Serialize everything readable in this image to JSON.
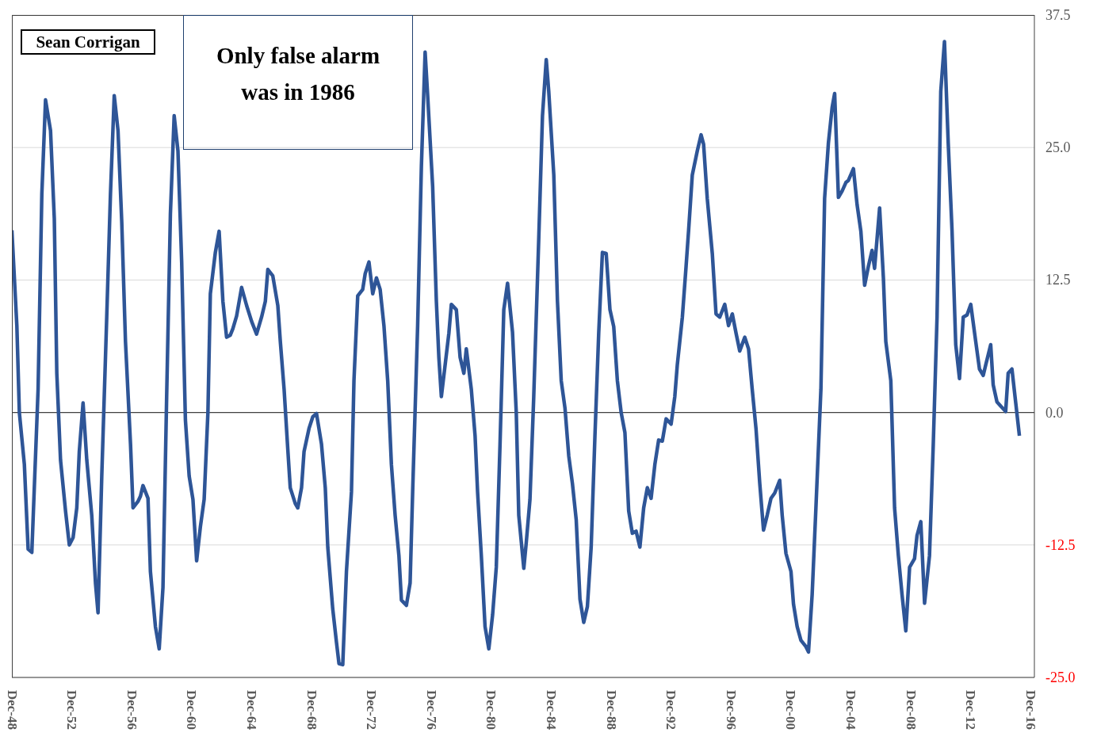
{
  "chart_data": {
    "type": "line",
    "annotations": [
      "Sean Corrigan",
      "Only false alarm was in 1986"
    ],
    "x": [
      "1948-12",
      "1949-04",
      "1949-06",
      "1949-10",
      "1950-01",
      "1950-04",
      "1950-09",
      "1950-12",
      "1951-03",
      "1951-07",
      "1951-10",
      "1951-12",
      "1952-03",
      "1952-07",
      "1952-10",
      "1953-01",
      "1953-04",
      "1953-06",
      "1953-09",
      "1953-12",
      "1954-04",
      "1954-07",
      "1954-09",
      "1954-12",
      "1955-04",
      "1955-07",
      "1955-10",
      "1956-01",
      "1956-04",
      "1956-07",
      "1956-11",
      "1957-01",
      "1957-05",
      "1957-07",
      "1957-09",
      "1958-01",
      "1958-03",
      "1958-07",
      "1958-10",
      "1959-01",
      "1959-04",
      "1959-07",
      "1959-10",
      "1960-01",
      "1960-04",
      "1960-07",
      "1960-10",
      "1961-01",
      "1961-04",
      "1961-07",
      "1961-10",
      "1962-01",
      "1962-03",
      "1962-07",
      "1962-10",
      "1963-01",
      "1963-04",
      "1963-07",
      "1963-09",
      "1963-12",
      "1964-04",
      "1964-08",
      "1964-12",
      "1965-04",
      "1965-08",
      "1965-11",
      "1966-01",
      "1966-05",
      "1966-09",
      "1966-11",
      "1967-02",
      "1967-05",
      "1967-07",
      "1967-11",
      "1968-01",
      "1968-04",
      "1968-06",
      "1968-10",
      "1969-01",
      "1969-04",
      "1969-08",
      "1969-11",
      "1970-01",
      "1970-05",
      "1970-08",
      "1970-10",
      "1971-01",
      "1971-04",
      "1971-08",
      "1971-10",
      "1972-01",
      "1972-05",
      "1972-07",
      "1972-10",
      "1973-01",
      "1973-04",
      "1973-07",
      "1973-10",
      "1974-01",
      "1974-04",
      "1974-07",
      "1974-10",
      "1974-12",
      "1975-04",
      "1975-07",
      "1975-09",
      "1976-01",
      "1976-04",
      "1976-07",
      "1976-09",
      "1977-01",
      "1977-04",
      "1977-06",
      "1977-08",
      "1977-11",
      "1978-02",
      "1978-04",
      "1978-08",
      "1978-11",
      "1979-02",
      "1979-04",
      "1979-08",
      "1979-11",
      "1980-01",
      "1980-04",
      "1980-07",
      "1980-10",
      "1981-01",
      "1981-04",
      "1981-07",
      "1981-10",
      "1982-01",
      "1982-05",
      "1982-08",
      "1982-10",
      "1983-02",
      "1983-04",
      "1983-07",
      "1983-10",
      "1984-02",
      "1984-05",
      "1984-08",
      "1984-10",
      "1985-02",
      "1985-05",
      "1985-08",
      "1985-11",
      "1986-02",
      "1986-05",
      "1986-08",
      "1986-11",
      "1987-02",
      "1987-05",
      "1987-08",
      "1987-11",
      "1988-02",
      "1988-05",
      "1988-08",
      "1988-11",
      "1989-02",
      "1989-05",
      "1989-08",
      "1989-11",
      "1990-02",
      "1990-05",
      "1990-08",
      "1990-11",
      "1991-02",
      "1991-05",
      "1991-08",
      "1991-11",
      "1992-02",
      "1992-05",
      "1992-08",
      "1992-12",
      "1993-03",
      "1993-05",
      "1993-09",
      "1993-12",
      "1994-02",
      "1994-05",
      "1994-09",
      "1994-12",
      "1995-02",
      "1995-05",
      "1995-09",
      "1995-12",
      "1996-03",
      "1996-07",
      "1996-10",
      "1997-01",
      "1997-04",
      "1997-07",
      "1997-11",
      "1998-02",
      "1998-05",
      "1998-08",
      "1998-11",
      "1999-02",
      "1999-05",
      "1999-08",
      "1999-11",
      "2000-03",
      "2000-05",
      "2000-08",
      "2000-12",
      "2001-02",
      "2001-05",
      "2001-08",
      "2001-12",
      "2002-02",
      "2002-05",
      "2002-08",
      "2002-12",
      "2003-03",
      "2003-06",
      "2003-09",
      "2003-11",
      "2004-02",
      "2004-05",
      "2004-08",
      "2004-10",
      "2005-02",
      "2005-05",
      "2005-08",
      "2005-11",
      "2006-02",
      "2006-05",
      "2006-07",
      "2006-11",
      "2007-02",
      "2007-04",
      "2007-08",
      "2007-11",
      "2008-02",
      "2008-05",
      "2008-08",
      "2008-11",
      "2009-03",
      "2009-05",
      "2009-08",
      "2009-11",
      "2010-03",
      "2010-06",
      "2010-09",
      "2010-12",
      "2011-03",
      "2011-06",
      "2011-09",
      "2011-12",
      "2012-03",
      "2012-06",
      "2012-09",
      "2012-12",
      "2013-04",
      "2013-07",
      "2013-10",
      "2013-12",
      "2014-04",
      "2014-06",
      "2014-09",
      "2014-12",
      "2015-04",
      "2015-06",
      "2015-09",
      "2016-03"
    ],
    "series": [
      {
        "color": "#2e5597",
        "values": [
          17.2,
          8.2,
          0,
          -4.9,
          -12.9,
          -13.2,
          2.2,
          20.6,
          29.5,
          26.6,
          18.3,
          3.7,
          -4.5,
          -9.3,
          -12.5,
          -11.8,
          -9.0,
          -3.7,
          0.9,
          -4.5,
          -9.7,
          -16.1,
          -18.9,
          -6.0,
          9.0,
          20.6,
          29.9,
          26.6,
          18.0,
          6.7,
          -3.0,
          -9.0,
          -8.4,
          -7.9,
          -6.9,
          -8.1,
          -15.0,
          -20.2,
          -22.3,
          -16.5,
          1.5,
          18.7,
          28.0,
          24.7,
          14.2,
          -0.7,
          -6.0,
          -8.2,
          -14.0,
          -10.8,
          -8.2,
          0,
          11.2,
          15.1,
          17.1,
          10.5,
          7.1,
          7.3,
          7.9,
          9.1,
          11.8,
          10.1,
          8.6,
          7.4,
          9.0,
          10.5,
          13.5,
          12.9,
          10.1,
          6.7,
          2.2,
          -3.4,
          -7.1,
          -8.6,
          -9.0,
          -7.1,
          -3.7,
          -1.5,
          -0.4,
          -0.1,
          -3.0,
          -7.1,
          -12.7,
          -18.5,
          -21.7,
          -23.7,
          -23.8,
          -15.0,
          -7.5,
          3.0,
          11.0,
          11.6,
          13.1,
          14.2,
          11.2,
          12.7,
          11.6,
          8.2,
          3.0,
          -4.9,
          -9.7,
          -13.5,
          -17.7,
          -18.2,
          -16.1,
          -7.5,
          8.2,
          23.2,
          34.0,
          29.9,
          21.3,
          10.5,
          5.2,
          1.5,
          4.5,
          7.5,
          10.2,
          9.7,
          5.2,
          3.7,
          6.0,
          2.2,
          -2.2,
          -7.5,
          -13.5,
          -20.2,
          -22.3,
          -19.1,
          -14.6,
          -3.0,
          9.7,
          12.2,
          7.6,
          0,
          -9.7,
          -14.7,
          -12.3,
          -8.2,
          1.5,
          16.5,
          28.0,
          33.3,
          30.3,
          22.4,
          10.5,
          3.0,
          0.4,
          -4.1,
          -6.7,
          -10.1,
          -17.6,
          -19.8,
          -18.3,
          -12.7,
          -2.2,
          7.5,
          15.1,
          15.0,
          9.7,
          8.1,
          3.0,
          0,
          -1.9,
          -9.3,
          -11.4,
          -11.2,
          -12.7,
          -9.0,
          -7.1,
          -8.1,
          -4.9,
          -2.6,
          -2.7,
          -0.6,
          -1.1,
          1.5,
          4.5,
          9.0,
          13.8,
          17.2,
          22.4,
          24.7,
          26.2,
          25.3,
          20.2,
          15.0,
          9.3,
          9.0,
          10.2,
          8.2,
          9.3,
          7.5,
          5.8,
          7.1,
          6.0,
          2.2,
          -1.5,
          -6.7,
          -11.1,
          -9.7,
          -8.1,
          -7.6,
          -6.4,
          -9.7,
          -13.3,
          -15.0,
          -18.1,
          -20.2,
          -21.5,
          -22.1,
          -22.6,
          -17.2,
          -9.0,
          2.2,
          20.2,
          25.4,
          28.8,
          30.1,
          20.3,
          20.9,
          21.7,
          21.9,
          23.0,
          19.6,
          17.1,
          12.0,
          13.8,
          15.3,
          13.6,
          19.3,
          12.7,
          6.7,
          3.0,
          -9.0,
          -13.5,
          -17.2,
          -20.6,
          -14.6,
          -13.8,
          -11.6,
          -10.3,
          -18.0,
          -13.5,
          -3.0,
          9.0,
          30.3,
          35.0,
          25.4,
          17.2,
          6.4,
          3.2,
          9.0,
          9.2,
          10.2,
          6.7,
          4.1,
          3.5,
          4.5,
          6.4,
          2.6,
          1.0,
          0.6,
          0.1,
          3.7,
          4.1,
          -2.2
        ]
      }
    ],
    "xlim": [
      "1948-12",
      "2017-03"
    ],
    "xticks": [
      {
        "value": "1948-12",
        "label": "Dec-48"
      },
      {
        "value": "1952-12",
        "label": "Dec-52"
      },
      {
        "value": "1956-12",
        "label": "Dec-56"
      },
      {
        "value": "1960-12",
        "label": "Dec-60"
      },
      {
        "value": "1964-12",
        "label": "Dec-64"
      },
      {
        "value": "1968-12",
        "label": "Dec-68"
      },
      {
        "value": "1972-12",
        "label": "Dec-72"
      },
      {
        "value": "1976-12",
        "label": "Dec-76"
      },
      {
        "value": "1980-12",
        "label": "Dec-80"
      },
      {
        "value": "1984-12",
        "label": "Dec-84"
      },
      {
        "value": "1988-12",
        "label": "Dec-88"
      },
      {
        "value": "1992-12",
        "label": "Dec-92"
      },
      {
        "value": "1996-12",
        "label": "Dec-96"
      },
      {
        "value": "2000-12",
        "label": "Dec-00"
      },
      {
        "value": "2004-12",
        "label": "Dec-04"
      },
      {
        "value": "2008-12",
        "label": "Dec-08"
      },
      {
        "value": "2012-12",
        "label": "Dec-12"
      },
      {
        "value": "2016-12",
        "label": "Dec-16"
      }
    ],
    "ylim": [
      -25,
      37.5
    ],
    "yticks": [
      {
        "value": -25,
        "label": "-25.0"
      },
      {
        "value": -12.5,
        "label": "-12.5"
      },
      {
        "value": 0,
        "label": "0.0"
      },
      {
        "value": 12.5,
        "label": "12.5"
      },
      {
        "value": 25,
        "label": "25.0"
      },
      {
        "value": 37.5,
        "label": "37.5"
      }
    ],
    "ref_lines": [
      {
        "axis": "y",
        "value": 0,
        "color": "#404040"
      }
    ],
    "grid": "y",
    "legend": false,
    "marker": "none",
    "line_style": "solid"
  }
}
